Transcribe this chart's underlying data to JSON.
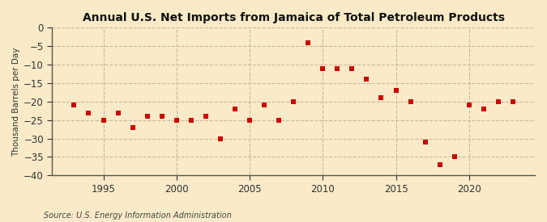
{
  "title": "Annual U.S. Net Imports from Jamaica of Total Petroleum Products",
  "ylabel": "Thousand Barrels per Day",
  "source": "Source: U.S. Energy Information Administration",
  "background_color": "#faeac8",
  "plot_bg_color": "#faeac8",
  "marker_color": "#cc0000",
  "grid_color": "#c8b898",
  "years": [
    1993,
    1994,
    1995,
    1996,
    1997,
    1998,
    1999,
    2000,
    2001,
    2002,
    2003,
    2004,
    2005,
    2006,
    2007,
    2008,
    2009,
    2010,
    2011,
    2012,
    2013,
    2014,
    2015,
    2016,
    2017,
    2018,
    2019,
    2020,
    2021,
    2022,
    2023
  ],
  "values": [
    -21,
    -23,
    -25,
    -23,
    -27,
    -24,
    -24,
    -25,
    -25,
    -24,
    -30,
    -22,
    -25,
    -21,
    -25,
    -20,
    -4,
    -11,
    -11,
    -11,
    -14,
    -19,
    -17,
    -20,
    -31,
    -37,
    -35,
    -21,
    -22,
    -20,
    -20
  ],
  "ylim": [
    -40,
    0
  ],
  "yticks": [
    0,
    -5,
    -10,
    -15,
    -20,
    -25,
    -30,
    -35,
    -40
  ],
  "xlim": [
    1991.5,
    2024.5
  ],
  "xticks": [
    1995,
    2000,
    2005,
    2010,
    2015,
    2020
  ]
}
